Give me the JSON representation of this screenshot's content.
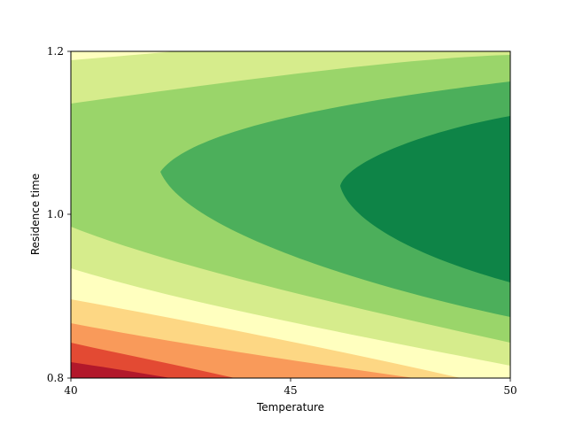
{
  "chart_data": {
    "type": "contour",
    "title": "",
    "xlabel": "Temperature",
    "ylabel": "Residence time",
    "xlim": [
      40,
      50
    ],
    "ylim": [
      0.8,
      1.2
    ],
    "xticks": [
      40,
      45,
      50
    ],
    "xtick_labels": [
      "40",
      "45",
      "50"
    ],
    "yticks": [
      0.8,
      1.0,
      1.2
    ],
    "ytick_labels": [
      "0.8",
      "1.0",
      "1.2"
    ],
    "colormap": "RdYlGn",
    "grid": false,
    "levels": [
      {
        "index": 0,
        "color": "#b2182b"
      },
      {
        "index": 1,
        "color": "#e34a33"
      },
      {
        "index": 2,
        "color": "#f99a5a"
      },
      {
        "index": 3,
        "color": "#fdd784"
      },
      {
        "index": 4,
        "color": "#ffffbf"
      },
      {
        "index": 5,
        "color": "#d6ec8c"
      },
      {
        "index": 6,
        "color": "#9ad56a"
      },
      {
        "index": 7,
        "color": "#4caf5b"
      },
      {
        "index": 8,
        "color": "#0e8447"
      }
    ],
    "boundaries": [
      {
        "between": [
          0,
          1
        ],
        "points": [
          [
            40,
            0.819
          ],
          [
            43,
            0.8
          ]
        ]
      },
      {
        "between": [
          1,
          2
        ],
        "points": [
          [
            40,
            0.844
          ],
          [
            44,
            0.816
          ],
          [
            46,
            0.8
          ]
        ]
      },
      {
        "between": [
          2,
          3
        ],
        "points": [
          [
            40,
            0.866
          ],
          [
            45,
            0.828
          ],
          [
            49,
            0.8
          ]
        ]
      },
      {
        "between": [
          3,
          4
        ],
        "points": [
          [
            40,
            0.895
          ],
          [
            45,
            0.861
          ],
          [
            50,
            0.83
          ]
        ]
      },
      {
        "between": [
          4,
          5
        ],
        "points": [
          [
            40,
            0.935
          ],
          [
            45,
            0.885
          ],
          [
            50,
            0.86
          ]
        ]
      },
      {
        "between": [
          5,
          6
        ],
        "type": "lower",
        "points": [
          [
            40,
            0.987
          ],
          [
            44,
            0.93
          ],
          [
            50,
            0.886
          ]
        ]
      },
      {
        "between": [
          5,
          6
        ],
        "type": "upper",
        "points": [
          [
            40,
            1.132
          ],
          [
            44,
            1.175
          ],
          [
            50,
            1.195
          ]
        ]
      },
      {
        "between": [
          4,
          5
        ],
        "type": "corner",
        "points": [
          [
            40,
            1.189
          ],
          [
            44,
            1.2
          ]
        ]
      },
      {
        "between": [
          6,
          7
        ],
        "type": "ellipse",
        "vertex": [
          42.0,
          1.05
        ],
        "points_lower": [
          [
            45,
            0.97
          ],
          [
            50,
            0.92
          ]
        ],
        "points_upper": [
          [
            45,
            1.135
          ],
          [
            50,
            1.162
          ]
        ]
      },
      {
        "between": [
          7,
          8
        ],
        "type": "ellipse",
        "vertex": [
          46.1,
          1.035
        ],
        "points_lower": [
          [
            48,
            0.965
          ],
          [
            50,
            0.915
          ]
        ],
        "points_upper": [
          [
            48,
            1.098
          ],
          [
            50,
            1.12
          ]
        ]
      }
    ]
  }
}
